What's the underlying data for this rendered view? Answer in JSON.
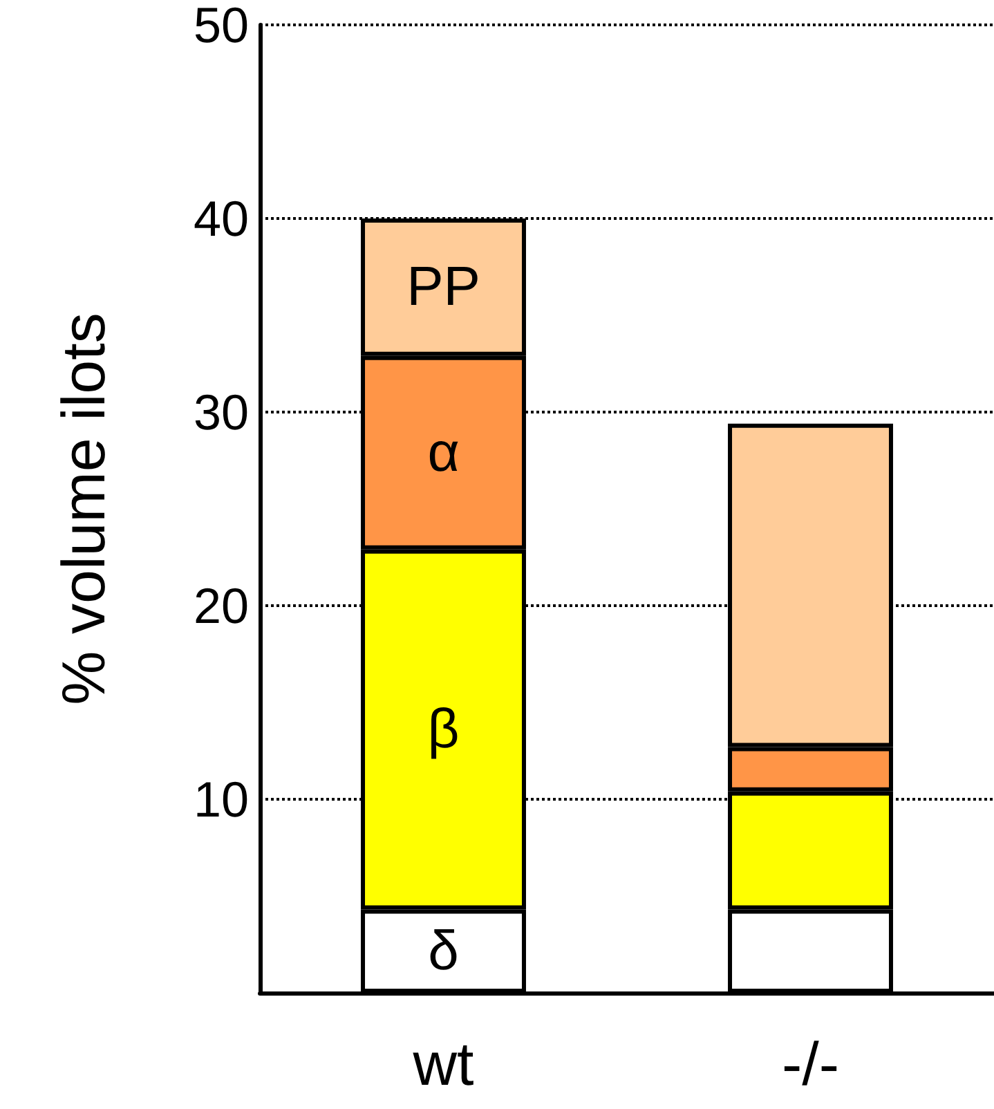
{
  "chart_data": {
    "type": "bar",
    "stacked": true,
    "ylabel": "% volume ilots",
    "categories": [
      "wt",
      "-/-"
    ],
    "series": [
      {
        "name": "δ",
        "color": "#ffffff",
        "values": [
          4.3,
          4.3
        ]
      },
      {
        "name": "β",
        "color": "#ffff00",
        "values": [
          18.6,
          6.1
        ]
      },
      {
        "name": "α",
        "color": "#ff9547",
        "values": [
          10,
          2.3
        ]
      },
      {
        "name": "PP",
        "color": "#ffcc99",
        "values": [
          7.1,
          16.7
        ]
      }
    ],
    "ylim": [
      0,
      50
    ],
    "yticks": [
      {
        "value": 0,
        "label": null
      },
      10,
      20,
      30,
      40,
      50
    ],
    "grid": "y",
    "legend": false
  }
}
